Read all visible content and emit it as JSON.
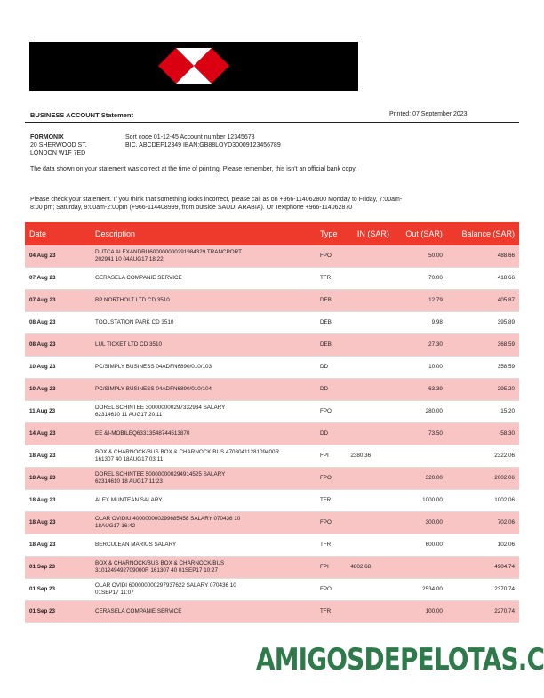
{
  "header": {
    "title": "BUSINESS ACCOUNT Statement",
    "printed": "Printed: 07 September 2023"
  },
  "customer": {
    "name": "FORMONIX",
    "address1": "20 SHERWOOD ST.",
    "address2": "LONDON W1F 7ED",
    "sort_line": "Sort code 01-12-45  Account number 12345678",
    "bic_line": "BIC. ABCDEF12349   IBAN:GB88LOYD30009123456789"
  },
  "notices": {
    "disclaimer": "The data shown on your statement was correct at the time of printing. Please remember, this isn't an official bank copy.",
    "check1": "Please check your statement. If you think that something looks incorrect, please call as on +966-114062800 Monday to Friday, 7:00am-",
    "check2": "8:00 pm; Saturday, 9:00am-2:00pm (+966-114408999, from outside SAUDI ARABIA). Or Textphone +966-114062870"
  },
  "colors": {
    "header_red": "#ee3a2c",
    "row_pink": "#f8c4c4",
    "watermark_green": "#2f7a4a"
  },
  "table": {
    "columns": [
      "Date",
      "Description",
      "Type",
      "IN (SAR)",
      "Out (SAR)",
      "Balance (SAR)"
    ],
    "rows": [
      [
        "04 Aug 23",
        "DUTCA ALEXANDRU600000000291984329 TRANCPORT\n202941 10 04AUG17 18:22",
        "FPO",
        "",
        "50.00",
        "488.66"
      ],
      [
        "07 Aug 23",
        "GERASELA COMPANIE SERVICE",
        "TFR",
        "",
        "70.00",
        "418.66"
      ],
      [
        "07 Aug 23",
        "BP NORTHOLT LTD CD 3510",
        "DEB",
        "",
        "12.79",
        "405.87"
      ],
      [
        "08 Aug 23",
        "TOOLSTATION PARK CD 3510",
        "DEB",
        "",
        "9.98",
        "395.89"
      ],
      [
        "08 Aug 23",
        "LUL TICKET LTD CD 3510",
        "DEB",
        "",
        "27.30",
        "368.59"
      ],
      [
        "10 Aug 23",
        "PC/SIMPLY BUSINESS 04ADFN6890/010/103",
        "DD",
        "",
        "10.00",
        "358.59"
      ],
      [
        "10 Aug 23",
        "PC/SIMPLY BUSINESS 04ADFN6890/010/104",
        "DD",
        "",
        "63.39",
        "295.20"
      ],
      [
        "11 Aug 23",
        "DOREL SCHINTEE 300000000297332934 SALARY\n62314610 11 AUG17 20:11",
        "FPO",
        "",
        "280.00",
        "15.20"
      ],
      [
        "14 Aug 23",
        "EE &I-MOBILEQ63313548744513870",
        "DD",
        "",
        "73.50",
        "-58.30"
      ],
      [
        "18 Aug 23",
        "BOX & CHARNOCK/BUS BOX & CHARNOCK,BUS 4703041128109400R\n161307 40 18AUG17 03:11",
        "FPI",
        "2380.36",
        "",
        "2322.06"
      ],
      [
        "18 Aug 23",
        "DOREL SCHINTEE 500000000294914525 SALARY\n62314610 18 AUG17 11:23",
        "FPO",
        "",
        "320.00",
        "2002.06"
      ],
      [
        "18 Aug 23",
        "ALEX MUNTEAN SALARY",
        "TFR",
        "",
        "1000.00",
        "1002.06"
      ],
      [
        "18 Aug 23",
        "OLAR OVIDIU 400000000299685458 SALARY 070436 10\n18AUG17 16:42",
        "FPO",
        "",
        "300.00",
        "702.06"
      ],
      [
        "18 Aug 23",
        "BERCULEAN MARIUS SALARY",
        "TFR",
        "",
        "600.00",
        "102.06"
      ],
      [
        "01 Sep 23",
        "BOX & CHARNOCK/BUS BOX & CHARNOCK/BUS\n3101249492709000R 161307 40 01SEP17 10:27",
        "FPI",
        "4802.68",
        "",
        "4904.74"
      ],
      [
        "01 Sep 23",
        "OLAR OVIDI 600000000297937622 SALARY 070436 10\n01SEP17 11:07",
        "FPO",
        "",
        "2534.00",
        "2370.74"
      ],
      [
        "01 Sep 23",
        "CERASELA COMPANIE SERVICE",
        "TFR",
        "",
        "100.00",
        "2270.74"
      ]
    ]
  },
  "watermark": "AMIGOSDEPELOTAS.COM"
}
